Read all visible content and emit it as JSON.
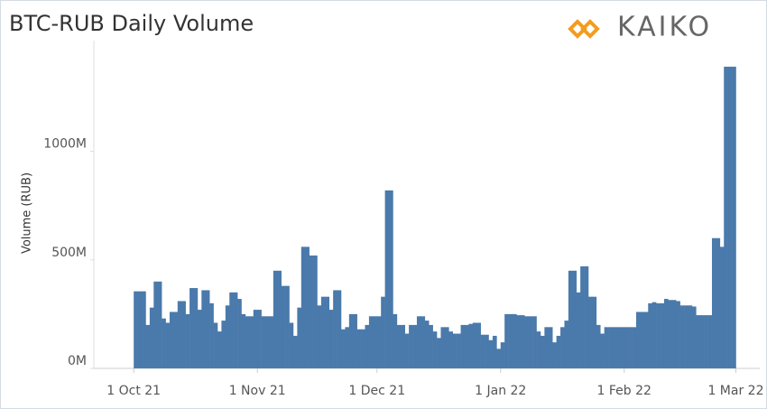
{
  "chart_data": {
    "type": "bar",
    "title": "BTC-RUB Daily Volume",
    "logo": "KAIKO",
    "y_label": "Volume (RUB)",
    "color": "#4a7aab",
    "grid": false,
    "xlim": [
      "2021-09-21",
      "2022-03-07"
    ],
    "xticks": [
      {
        "value": "2021-10-01",
        "label": "1 Oct 21"
      },
      {
        "value": "2021-11-01",
        "label": "1 Nov 21"
      },
      {
        "value": "2021-12-01",
        "label": "1 Dec 21"
      },
      {
        "value": "2022-01-01",
        "label": "1 Jan 22"
      },
      {
        "value": "2022-02-01",
        "label": "1 Feb 22"
      },
      {
        "value": "2022-03-01",
        "label": "1 Mar 22"
      }
    ],
    "ylim": [
      0,
      1510
    ],
    "yticks": [
      {
        "value": 0,
        "label": "0M"
      },
      {
        "value": 500,
        "label": "500M"
      },
      {
        "value": 1000,
        "label": "1000M"
      }
    ],
    "start": "2021-10-01",
    "values": [
      355,
      355,
      355,
      200,
      280,
      400,
      400,
      230,
      210,
      260,
      260,
      310,
      310,
      250,
      370,
      370,
      270,
      360,
      360,
      300,
      210,
      170,
      220,
      290,
      350,
      350,
      320,
      250,
      240,
      240,
      270,
      270,
      240,
      240,
      240,
      450,
      450,
      380,
      380,
      210,
      150,
      280,
      560,
      560,
      520,
      520,
      290,
      330,
      330,
      270,
      360,
      360,
      180,
      190,
      250,
      250,
      180,
      180,
      200,
      240,
      240,
      240,
      330,
      820,
      820,
      250,
      200,
      200,
      160,
      200,
      200,
      240,
      240,
      220,
      200,
      170,
      140,
      190,
      190,
      170,
      160,
      160,
      200,
      200,
      205,
      210,
      210,
      155,
      155,
      130,
      150,
      90,
      120,
      250,
      250,
      250,
      245,
      245,
      240,
      240,
      240,
      170,
      150,
      190,
      190,
      120,
      150,
      190,
      220,
      450,
      450,
      350,
      470,
      470,
      330,
      330,
      200,
      160,
      190,
      190,
      190,
      190,
      190,
      190,
      190,
      190,
      260,
      260,
      260,
      300,
      305,
      300,
      300,
      320,
      315,
      315,
      310,
      290,
      290,
      290,
      285,
      245,
      245,
      245,
      245,
      600,
      600,
      560,
      1390,
      1390,
      1390
    ]
  }
}
